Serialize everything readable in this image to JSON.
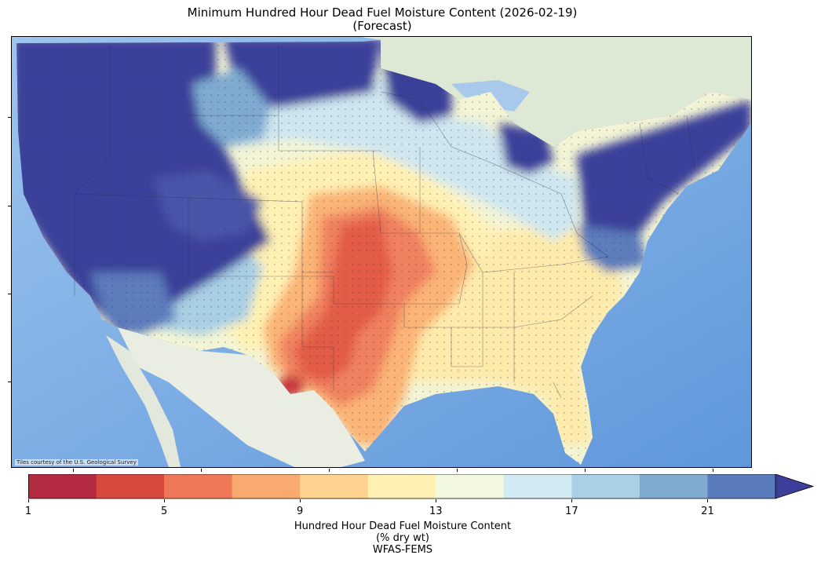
{
  "title": {
    "line1": "Minimum Hundred Hour Dead Fuel Moisture Content (2026-02-19)",
    "line2": "(Forecast)"
  },
  "map": {
    "attribution": "Tiles courtesy of the U.S. Geological Survey",
    "variable": "Hundred Hour Dead Fuel Moisture Content",
    "palette_note": "RdYlBu style, blue = moist, red = dry"
  },
  "colorbar": {
    "ticks": [
      "1",
      "5",
      "9",
      "13",
      "17",
      "21"
    ],
    "bins": [
      1,
      3,
      5,
      7,
      9,
      11,
      13,
      15,
      17,
      19,
      21,
      23
    ],
    "extend": "max",
    "colors": [
      "#b42a42",
      "#d9483f",
      "#ef7859",
      "#f9aa6e",
      "#fed38f",
      "#fff1b3",
      "#f1f8df",
      "#d2ebf2",
      "#a9d0e4",
      "#7fabd1",
      "#5b7cbc",
      "#3b3f9a"
    ],
    "label_line1": "Hundred Hour Dead Fuel Moisture Content",
    "label_line2": "(% dry wt)",
    "source": "WFAS-FEMS"
  }
}
